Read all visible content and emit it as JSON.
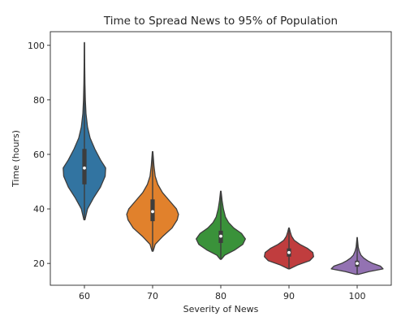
{
  "chart_data": {
    "type": "violin",
    "title": "Time to Spread News to 95% of Population",
    "xlabel": "Severity of News",
    "ylabel": "Time (hours)",
    "categories": [
      "60",
      "70",
      "80",
      "90",
      "100"
    ],
    "ylim": [
      12,
      105
    ],
    "yticks": [
      20,
      40,
      60,
      80,
      100
    ],
    "grid": false,
    "colors": [
      "#3274a1",
      "#e1812c",
      "#3a923a",
      "#c03d3e",
      "#9372b2"
    ],
    "violins": [
      {
        "category": "60",
        "min": 36,
        "max": 101,
        "median": 55,
        "q1": 49,
        "q3": 62,
        "density": [
          [
            36,
            0.02
          ],
          [
            40,
            0.12
          ],
          [
            44,
            0.35
          ],
          [
            48,
            0.62
          ],
          [
            52,
            0.8
          ],
          [
            55,
            0.82
          ],
          [
            58,
            0.62
          ],
          [
            62,
            0.4
          ],
          [
            66,
            0.22
          ],
          [
            70,
            0.12
          ],
          [
            75,
            0.06
          ],
          [
            80,
            0.035
          ],
          [
            86,
            0.02
          ],
          [
            92,
            0.012
          ],
          [
            101,
            0.004
          ]
        ]
      },
      {
        "category": "70",
        "min": 24.5,
        "max": 61,
        "median": 39,
        "q1": 35.5,
        "q3": 43.5,
        "density": [
          [
            24.5,
            0.02
          ],
          [
            27,
            0.1
          ],
          [
            30,
            0.4
          ],
          [
            33,
            0.75
          ],
          [
            36,
            0.95
          ],
          [
            38,
            1.0
          ],
          [
            40,
            0.92
          ],
          [
            43,
            0.65
          ],
          [
            46,
            0.38
          ],
          [
            49,
            0.2
          ],
          [
            52,
            0.1
          ],
          [
            56,
            0.05
          ],
          [
            61,
            0.01
          ]
        ]
      },
      {
        "category": "80",
        "min": 21.5,
        "max": 46.5,
        "median": 30,
        "q1": 27.5,
        "q3": 32,
        "density": [
          [
            21.5,
            0.02
          ],
          [
            23,
            0.15
          ],
          [
            25,
            0.55
          ],
          [
            27,
            0.85
          ],
          [
            29,
            0.95
          ],
          [
            31,
            0.8
          ],
          [
            33,
            0.5
          ],
          [
            35,
            0.3
          ],
          [
            37,
            0.18
          ],
          [
            40,
            0.1
          ],
          [
            43,
            0.05
          ],
          [
            46.5,
            0.01
          ]
        ]
      },
      {
        "category": "90",
        "min": 18,
        "max": 33,
        "median": 24,
        "q1": 22.5,
        "q3": 25.5,
        "density": [
          [
            18,
            0.02
          ],
          [
            19.5,
            0.35
          ],
          [
            21,
            0.8
          ],
          [
            22.5,
            0.95
          ],
          [
            24,
            0.92
          ],
          [
            25.5,
            0.72
          ],
          [
            27,
            0.42
          ],
          [
            28.5,
            0.2
          ],
          [
            30,
            0.1
          ],
          [
            31.5,
            0.05
          ],
          [
            33,
            0.01
          ]
        ]
      },
      {
        "category": "100",
        "min": 16,
        "max": 29.5,
        "median": 20,
        "q1": 18.8,
        "q3": 21,
        "density": [
          [
            16,
            0.05
          ],
          [
            17,
            0.45
          ],
          [
            18,
            1.0
          ],
          [
            19,
            0.9
          ],
          [
            20,
            0.6
          ],
          [
            21,
            0.4
          ],
          [
            22,
            0.25
          ],
          [
            23,
            0.15
          ],
          [
            24.5,
            0.08
          ],
          [
            26,
            0.04
          ],
          [
            28,
            0.02
          ],
          [
            29.5,
            0.005
          ]
        ]
      }
    ]
  }
}
